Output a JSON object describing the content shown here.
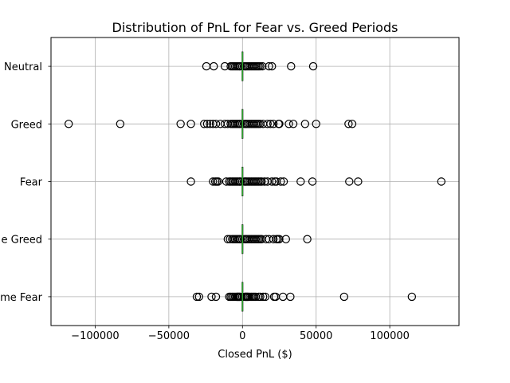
{
  "chart_data": {
    "type": "boxplot",
    "orientation": "horizontal",
    "title": "Distribution of PnL for Fear vs. Greed Periods",
    "xlabel": "Closed PnL ($)",
    "ylabel": "",
    "xlim": [
      -130000,
      147000
    ],
    "x_ticks": [
      -100000,
      -50000,
      0,
      50000,
      100000
    ],
    "x_tick_labels": [
      "−100000",
      "−50000",
      "0",
      "50000",
      "100000"
    ],
    "grid": true,
    "categories": [
      "Extreme Fear",
      "Extreme Greed",
      "Fear",
      "Greed",
      "Neutral"
    ],
    "category_labels": [
      "me Fear",
      "e Greed",
      "Fear",
      "Greed",
      "Neutral"
    ],
    "median_color": "#2ca02c",
    "flier_color": "#000000",
    "series": [
      {
        "category": "Extreme Fear",
        "median": 0,
        "box": [
          0,
          0
        ],
        "whiskers": [
          0,
          0
        ],
        "outliers": [
          -31000,
          -29500,
          -21000,
          -18000,
          -9000,
          -8000,
          -7000,
          -6000,
          -5000,
          -4000,
          -3500,
          -3000,
          -2500,
          -2000,
          -1500,
          1500,
          2000,
          2500,
          3000,
          3500,
          4000,
          5000,
          6000,
          7000,
          8000,
          9000,
          11000,
          12000,
          14000,
          15500,
          21500,
          22500,
          27500,
          32500,
          69000,
          115000
        ]
      },
      {
        "category": "Extreme Greed",
        "median": 0,
        "box": [
          0,
          0
        ],
        "whiskers": [
          0,
          0
        ],
        "outliers": [
          -10000,
          -8500,
          -7000,
          -6000,
          -5000,
          -4000,
          -3000,
          -2000,
          -1500,
          1500,
          2000,
          3000,
          4000,
          5000,
          6000,
          7000,
          8000,
          9000,
          10000,
          11000,
          12000,
          13000,
          16000,
          18000,
          21000,
          23000,
          24000,
          25000,
          29500,
          44000
        ]
      },
      {
        "category": "Fear",
        "median": 0,
        "box": [
          0,
          0
        ],
        "whiskers": [
          0,
          0
        ],
        "outliers": [
          -35000,
          -20000,
          -18500,
          -17500,
          -16500,
          -11000,
          -9000,
          -8000,
          -7000,
          -6000,
          -5000,
          -4000,
          -3000,
          -2000,
          -1500,
          1500,
          2000,
          3000,
          4000,
          5000,
          6000,
          7000,
          8000,
          9000,
          10000,
          11000,
          12000,
          13000,
          15000,
          17000,
          20000,
          22000,
          23000,
          26000,
          28000,
          39500,
          47500,
          72500,
          78500,
          135000
        ]
      },
      {
        "category": "Greed",
        "median": 0,
        "box": [
          0,
          0
        ],
        "whiskers": [
          0,
          0
        ],
        "outliers": [
          -118000,
          -83000,
          -42000,
          -35000,
          -26000,
          -24000,
          -22000,
          -20000,
          -18000,
          -15000,
          -12000,
          -10000,
          -8000,
          -7000,
          -6000,
          -5000,
          -4000,
          -3000,
          -2000,
          -1500,
          1500,
          2000,
          3000,
          4000,
          5000,
          6000,
          7000,
          8000,
          9000,
          10000,
          11000,
          12000,
          14000,
          17000,
          19000,
          21000,
          24500,
          25000,
          31500,
          34500,
          42500,
          50000,
          72000,
          74500
        ]
      },
      {
        "category": "Neutral",
        "median": 0,
        "box": [
          0,
          0
        ],
        "whiskers": [
          0,
          0
        ],
        "outliers": [
          -24500,
          -19500,
          -12000,
          -8000,
          -7000,
          -6000,
          -5000,
          -4000,
          -3000,
          -2000,
          -1500,
          1500,
          2000,
          3000,
          4000,
          5000,
          6000,
          7000,
          8000,
          9000,
          10000,
          11000,
          12000,
          13500,
          18000,
          20000,
          33000,
          48000
        ]
      }
    ]
  }
}
